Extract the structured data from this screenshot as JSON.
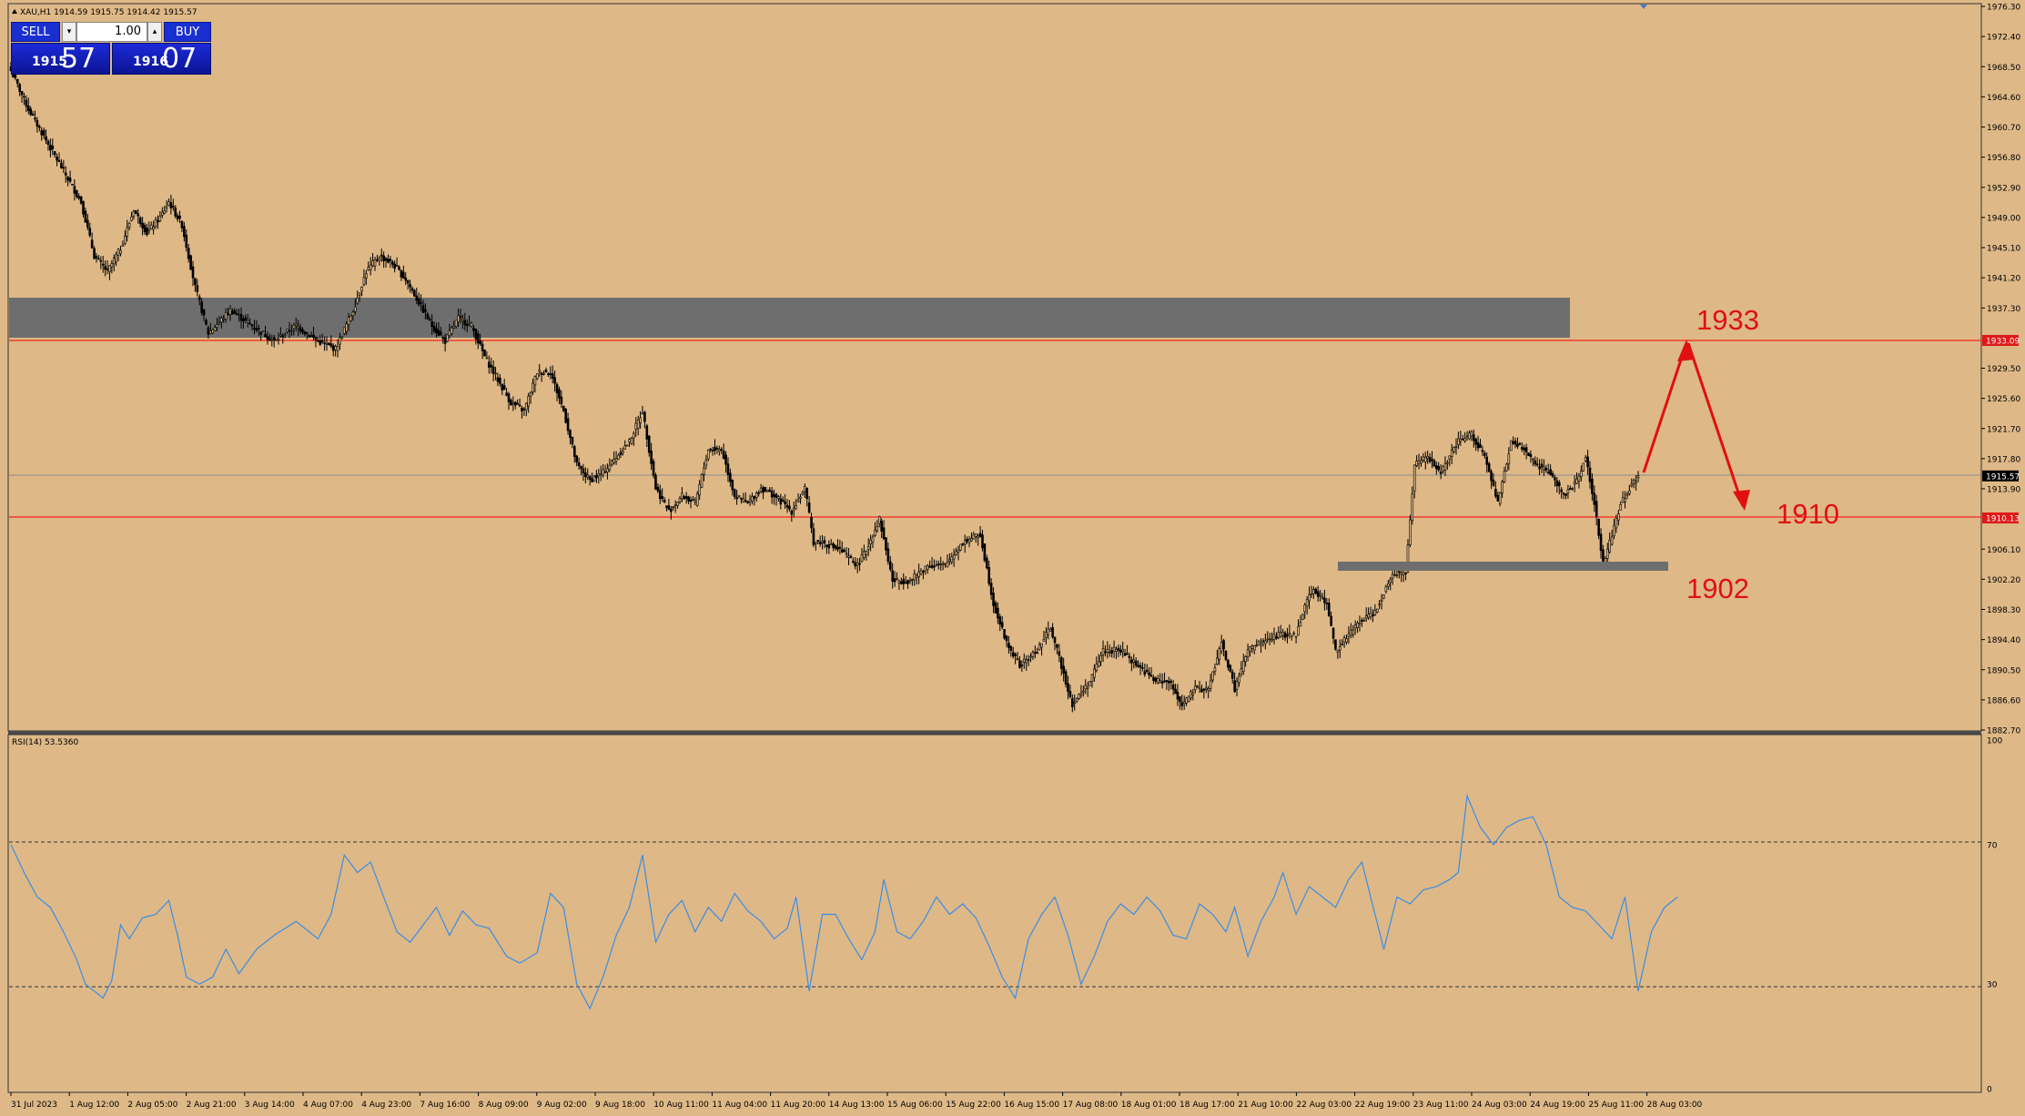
{
  "header": {
    "symbol_info": "XAU,H1  1914.59 1915.75 1914.42 1915.57"
  },
  "trade_panel": {
    "sell_label": "SELL",
    "buy_label": "BUY",
    "lot": "1.00",
    "down_arrow": "▾",
    "up_arrow": "▴",
    "sell_small": "1915",
    "sell_big": "57",
    "buy_small": "1916",
    "buy_big": "07"
  },
  "price_axis": [
    "1976.30",
    "1972.40",
    "1968.50",
    "1964.60",
    "1960.70",
    "1956.80",
    "1952.90",
    "1949.00",
    "1945.10",
    "1941.20",
    "1937.30",
    "1933.09",
    "1929.50",
    "1925.60",
    "1921.70",
    "1917.80",
    "1915.57",
    "1913.90",
    "1910.13",
    "1906.10",
    "1902.20",
    "1898.30",
    "1894.40",
    "1890.50",
    "1886.60",
    "1882.70"
  ],
  "time_axis": [
    "31 Jul 2023",
    "1 Aug 12:00",
    "2 Aug 05:00",
    "2 Aug 21:00",
    "3 Aug 14:00",
    "4 Aug 07:00",
    "4 Aug 23:00",
    "7 Aug 16:00",
    "8 Aug 09:00",
    "9 Aug 02:00",
    "9 Aug 18:00",
    "10 Aug 11:00",
    "11 Aug 04:00",
    "11 Aug 20:00",
    "14 Aug 13:00",
    "15 Aug 06:00",
    "15 Aug 22:00",
    "16 Aug 15:00",
    "17 Aug 08:00",
    "18 Aug 01:00",
    "18 Aug 17:00",
    "21 Aug 10:00",
    "22 Aug 03:00",
    "22 Aug 19:00",
    "23 Aug 11:00",
    "24 Aug 03:00",
    "24 Aug 19:00",
    "25 Aug 11:00",
    "28 Aug 03:00"
  ],
  "rsi": {
    "label": "RSI(14) 53.5360",
    "axis": [
      "100",
      "70",
      "30",
      "0"
    ]
  },
  "annotations": {
    "level_1933": "1933",
    "level_1910": "1910",
    "level_1902": "1902"
  },
  "colors": {
    "background": "#deb887",
    "candles": "#000000",
    "zone": "#6e6e6e",
    "level_line": "#ff0000",
    "annotation": "#e01010",
    "rsi_line": "#3a8ee6",
    "current_price_tag": "#000000"
  },
  "chart_data": {
    "type": "candlestick",
    "price_range": [
      1882.7,
      1976.3
    ],
    "current_price": 1915.57,
    "levels": [
      1933.09,
      1910.13
    ],
    "resistance_zone": [
      1932.9,
      1938.3
    ],
    "support_zone": [
      1902.9,
      1904.1
    ],
    "close_path": [
      [
        0,
        1968
      ],
      [
        8,
        1963
      ],
      [
        16,
        1959
      ],
      [
        24,
        1955
      ],
      [
        32,
        1951
      ],
      [
        38,
        1944
      ],
      [
        44,
        1942
      ],
      [
        50,
        1945
      ],
      [
        56,
        1950
      ],
      [
        62,
        1947
      ],
      [
        68,
        1949
      ],
      [
        72,
        1951
      ],
      [
        78,
        1948
      ],
      [
        84,
        1940
      ],
      [
        90,
        1934
      ],
      [
        100,
        1937
      ],
      [
        110,
        1935
      ],
      [
        120,
        1933
      ],
      [
        130,
        1935
      ],
      [
        140,
        1933
      ],
      [
        148,
        1932
      ],
      [
        156,
        1937
      ],
      [
        162,
        1942
      ],
      [
        168,
        1944
      ],
      [
        174,
        1943
      ],
      [
        180,
        1941
      ],
      [
        186,
        1938
      ],
      [
        192,
        1935
      ],
      [
        198,
        1933
      ],
      [
        204,
        1936
      ],
      [
        210,
        1935
      ],
      [
        216,
        1931
      ],
      [
        222,
        1928
      ],
      [
        228,
        1925
      ],
      [
        234,
        1924
      ],
      [
        240,
        1929
      ],
      [
        246,
        1929
      ],
      [
        252,
        1924
      ],
      [
        258,
        1917
      ],
      [
        264,
        1915
      ],
      [
        270,
        1916
      ],
      [
        276,
        1918
      ],
      [
        282,
        1920
      ],
      [
        288,
        1924
      ],
      [
        294,
        1914
      ],
      [
        300,
        1911
      ],
      [
        306,
        1913
      ],
      [
        312,
        1912
      ],
      [
        318,
        1919
      ],
      [
        324,
        1919
      ],
      [
        330,
        1913
      ],
      [
        336,
        1912
      ],
      [
        342,
        1914
      ],
      [
        348,
        1913
      ],
      [
        356,
        1911
      ],
      [
        362,
        1914
      ],
      [
        366,
        1907
      ],
      [
        370,
        1907
      ],
      [
        378,
        1906
      ],
      [
        386,
        1904
      ],
      [
        390,
        1906
      ],
      [
        396,
        1910
      ],
      [
        402,
        1902
      ],
      [
        410,
        1902
      ],
      [
        418,
        1904
      ],
      [
        426,
        1904
      ],
      [
        434,
        1907
      ],
      [
        442,
        1908
      ],
      [
        448,
        1899
      ],
      [
        454,
        1894
      ],
      [
        460,
        1891
      ],
      [
        468,
        1893
      ],
      [
        474,
        1896
      ],
      [
        478,
        1892
      ],
      [
        484,
        1886
      ],
      [
        492,
        1889
      ],
      [
        498,
        1893
      ],
      [
        506,
        1893
      ],
      [
        514,
        1891
      ],
      [
        522,
        1889
      ],
      [
        528,
        1889
      ],
      [
        534,
        1886
      ],
      [
        540,
        1888
      ],
      [
        546,
        1888
      ],
      [
        552,
        1894
      ],
      [
        558,
        1888
      ],
      [
        564,
        1893
      ],
      [
        570,
        1894
      ],
      [
        578,
        1895
      ],
      [
        586,
        1895
      ],
      [
        590,
        1899
      ],
      [
        594,
        1901
      ],
      [
        600,
        1899
      ],
      [
        604,
        1893
      ],
      [
        610,
        1895
      ],
      [
        616,
        1897
      ],
      [
        622,
        1898
      ],
      [
        630,
        1903
      ],
      [
        636,
        1903
      ],
      [
        640,
        1917
      ],
      [
        646,
        1918
      ],
      [
        652,
        1916
      ],
      [
        660,
        1920
      ],
      [
        666,
        1921
      ],
      [
        672,
        1918
      ],
      [
        678,
        1912
      ],
      [
        684,
        1920
      ],
      [
        690,
        1919
      ],
      [
        696,
        1917
      ],
      [
        702,
        1916
      ],
      [
        708,
        1913
      ],
      [
        714,
        1915
      ],
      [
        718,
        1918
      ],
      [
        722,
        1912
      ],
      [
        726,
        1904
      ],
      [
        730,
        1908
      ],
      [
        734,
        1912
      ],
      [
        738,
        1914
      ],
      [
        742,
        1915.6
      ]
    ],
    "rsi_range": [
      0,
      100
    ],
    "rsi_levels": [
      70,
      30
    ],
    "rsi_values": [
      [
        0,
        70
      ],
      [
        6,
        62
      ],
      [
        12,
        55
      ],
      [
        18,
        52
      ],
      [
        24,
        45
      ],
      [
        30,
        37
      ],
      [
        34,
        30
      ],
      [
        38,
        28
      ],
      [
        42,
        26
      ],
      [
        46,
        31
      ],
      [
        50,
        47
      ],
      [
        54,
        43
      ],
      [
        60,
        49
      ],
      [
        66,
        50
      ],
      [
        72,
        54
      ],
      [
        76,
        44
      ],
      [
        80,
        32
      ],
      [
        86,
        30
      ],
      [
        92,
        32
      ],
      [
        98,
        40
      ],
      [
        104,
        33
      ],
      [
        112,
        40
      ],
      [
        120,
        44
      ],
      [
        130,
        48
      ],
      [
        140,
        43
      ],
      [
        146,
        50
      ],
      [
        152,
        67
      ],
      [
        158,
        62
      ],
      [
        164,
        65
      ],
      [
        170,
        55
      ],
      [
        176,
        45
      ],
      [
        182,
        42
      ],
      [
        188,
        47
      ],
      [
        194,
        52
      ],
      [
        200,
        44
      ],
      [
        206,
        51
      ],
      [
        212,
        47
      ],
      [
        218,
        46
      ],
      [
        226,
        38
      ],
      [
        232,
        36
      ],
      [
        240,
        39
      ],
      [
        246,
        56
      ],
      [
        252,
        52
      ],
      [
        258,
        30
      ],
      [
        264,
        23
      ],
      [
        270,
        32
      ],
      [
        276,
        44
      ],
      [
        282,
        52
      ],
      [
        288,
        67
      ],
      [
        294,
        42
      ],
      [
        300,
        50
      ],
      [
        306,
        54
      ],
      [
        312,
        45
      ],
      [
        318,
        52
      ],
      [
        324,
        48
      ],
      [
        330,
        56
      ],
      [
        336,
        51
      ],
      [
        342,
        48
      ],
      [
        348,
        43
      ],
      [
        354,
        46
      ],
      [
        358,
        55
      ],
      [
        364,
        28
      ],
      [
        370,
        50
      ],
      [
        376,
        50
      ],
      [
        382,
        43
      ],
      [
        388,
        37
      ],
      [
        394,
        45
      ],
      [
        398,
        60
      ],
      [
        404,
        45
      ],
      [
        410,
        43
      ],
      [
        416,
        48
      ],
      [
        422,
        55
      ],
      [
        428,
        50
      ],
      [
        434,
        53
      ],
      [
        440,
        49
      ],
      [
        446,
        41
      ],
      [
        452,
        32
      ],
      [
        458,
        26
      ],
      [
        464,
        43
      ],
      [
        470,
        50
      ],
      [
        476,
        55
      ],
      [
        482,
        44
      ],
      [
        488,
        30
      ],
      [
        494,
        38
      ],
      [
        500,
        48
      ],
      [
        506,
        53
      ],
      [
        512,
        50
      ],
      [
        518,
        55
      ],
      [
        524,
        51
      ],
      [
        530,
        44
      ],
      [
        536,
        43
      ],
      [
        542,
        53
      ],
      [
        548,
        50
      ],
      [
        554,
        45
      ],
      [
        558,
        52
      ],
      [
        564,
        38
      ],
      [
        570,
        48
      ],
      [
        576,
        55
      ],
      [
        580,
        62
      ],
      [
        586,
        50
      ],
      [
        592,
        58
      ],
      [
        598,
        55
      ],
      [
        604,
        52
      ],
      [
        610,
        60
      ],
      [
        616,
        65
      ],
      [
        620,
        55
      ],
      [
        626,
        40
      ],
      [
        632,
        55
      ],
      [
        638,
        53
      ],
      [
        644,
        57
      ],
      [
        650,
        58
      ],
      [
        656,
        60
      ],
      [
        660,
        62
      ],
      [
        664,
        84
      ],
      [
        670,
        75
      ],
      [
        676,
        70
      ],
      [
        682,
        75
      ],
      [
        688,
        77
      ],
      [
        694,
        78
      ],
      [
        700,
        70
      ],
      [
        706,
        55
      ],
      [
        712,
        52
      ],
      [
        718,
        51
      ],
      [
        724,
        47
      ],
      [
        730,
        43
      ],
      [
        736,
        55
      ],
      [
        742,
        28
      ],
      [
        748,
        45
      ],
      [
        754,
        52
      ],
      [
        760,
        55
      ]
    ]
  }
}
